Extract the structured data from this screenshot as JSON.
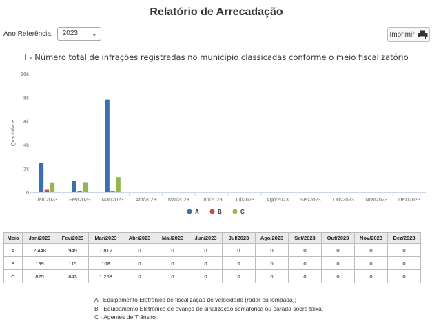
{
  "header": {
    "title": "Relatório de Arrecadação",
    "year_label": "Ano Referência:",
    "year_value": "2023",
    "print_label": "Imprimir"
  },
  "chart_data": {
    "type": "bar",
    "title": "I - Número total de infrações registradas no município classicadas conforme o meio fiscalizatório",
    "ylabel": "Quantidade",
    "xlabel": "",
    "ylim": [
      0,
      10000
    ],
    "yticks": [
      "0",
      "2k",
      "4k",
      "6k",
      "8k",
      "10k"
    ],
    "categories": [
      "Jan/2023",
      "Fev/2023",
      "Mar/2023",
      "Abr/2023",
      "Mai/2023",
      "Jun/2023",
      "Jul/2023",
      "Ago/2023",
      "Set/2023",
      "Out/2023",
      "Nov/2023",
      "Dez/2023"
    ],
    "series": [
      {
        "name": "A",
        "color": "#3b6faf",
        "values": [
          2448,
          949,
          7812,
          0,
          0,
          0,
          0,
          0,
          0,
          0,
          0,
          0
        ]
      },
      {
        "name": "B",
        "color": "#c0504d",
        "values": [
          199,
          115,
          108,
          0,
          0,
          0,
          0,
          0,
          0,
          0,
          0,
          0
        ]
      },
      {
        "name": "C",
        "color": "#8fb94f",
        "values": [
          825,
          843,
          1268,
          0,
          0,
          0,
          0,
          0,
          0,
          0,
          0,
          0
        ]
      }
    ],
    "legend_position": "bottom",
    "grid": false
  },
  "table": {
    "headers": [
      "Meio",
      "Jan/2023",
      "Fev/2023",
      "Mar/2023",
      "Abr/2023",
      "Mai/2023",
      "Jun/2023",
      "Jul/2023",
      "Ago/2023",
      "Set/2023",
      "Out/2023",
      "Nov/2023",
      "Dez/2023"
    ],
    "rows": [
      [
        "A",
        "2.448",
        "949",
        "7.812",
        "0",
        "0",
        "0",
        "0",
        "0",
        "0",
        "0",
        "0",
        "0"
      ],
      [
        "B",
        "199",
        "115",
        "108",
        "0",
        "0",
        "0",
        "0",
        "0",
        "0",
        "0",
        "0",
        "0"
      ],
      [
        "C",
        "825",
        "843",
        "1.268",
        "0",
        "0",
        "0",
        "0",
        "0",
        "0",
        "0",
        "0",
        "0"
      ]
    ]
  },
  "notes": [
    "A - Equipamento Eletrônico de fiscalização de velocidade (radar ou lombada);",
    "B - Equipamento Eletrônico de avanço de sinalização semafórica ou parada sobre faixa;",
    "C - Agentes de Trânsito."
  ],
  "icons": {
    "print": "printer-icon",
    "select": "chevron-down-icon"
  }
}
